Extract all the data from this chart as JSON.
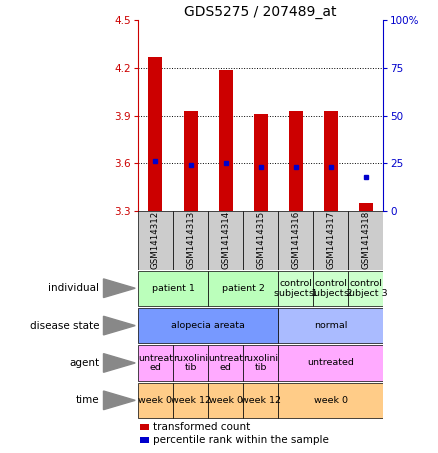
{
  "title": "GDS5275 / 207489_at",
  "samples": [
    "GSM1414312",
    "GSM1414313",
    "GSM1414314",
    "GSM1414315",
    "GSM1414316",
    "GSM1414317",
    "GSM1414318"
  ],
  "red_values": [
    4.27,
    3.93,
    4.19,
    3.91,
    3.93,
    3.93,
    3.35
  ],
  "blue_values": [
    3.61,
    3.585,
    3.6,
    3.575,
    3.575,
    3.575,
    3.51
  ],
  "ylim_left": [
    3.3,
    4.5
  ],
  "ylim_right": [
    0,
    100
  ],
  "yticks_left": [
    3.3,
    3.6,
    3.9,
    4.2,
    4.5
  ],
  "ytick_labels_left": [
    "3.3",
    "3.6",
    "3.9",
    "4.2",
    "4.5"
  ],
  "yticks_right": [
    0,
    25,
    50,
    75,
    100
  ],
  "ytick_labels_right": [
    "0",
    "25",
    "50",
    "75",
    "100%"
  ],
  "hline_values": [
    4.2,
    3.9,
    3.6
  ],
  "rows": {
    "individual": {
      "groups": [
        {
          "text": "patient 1",
          "cols": [
            0,
            1
          ],
          "color": "#bbffbb"
        },
        {
          "text": "patient 2",
          "cols": [
            2,
            3
          ],
          "color": "#bbffbb"
        },
        {
          "text": "control\nsubject 1",
          "cols": [
            4
          ],
          "color": "#ccffcc"
        },
        {
          "text": "control\nsubject 2",
          "cols": [
            5
          ],
          "color": "#ccffcc"
        },
        {
          "text": "control\nsubject 3",
          "cols": [
            6
          ],
          "color": "#ccffcc"
        }
      ]
    },
    "disease_state": {
      "groups": [
        {
          "text": "alopecia areata",
          "cols": [
            0,
            1,
            2,
            3
          ],
          "color": "#7799ff"
        },
        {
          "text": "normal",
          "cols": [
            4,
            5,
            6
          ],
          "color": "#aabbff"
        }
      ]
    },
    "agent": {
      "groups": [
        {
          "text": "untreat\ned",
          "cols": [
            0
          ],
          "color": "#ffaaff"
        },
        {
          "text": "ruxolini\ntib",
          "cols": [
            1
          ],
          "color": "#ffaaff"
        },
        {
          "text": "untreat\ned",
          "cols": [
            2
          ],
          "color": "#ffaaff"
        },
        {
          "text": "ruxolini\ntib",
          "cols": [
            3
          ],
          "color": "#ffaaff"
        },
        {
          "text": "untreated",
          "cols": [
            4,
            5,
            6
          ],
          "color": "#ffaaff"
        }
      ]
    },
    "time": {
      "groups": [
        {
          "text": "week 0",
          "cols": [
            0
          ],
          "color": "#ffcc88"
        },
        {
          "text": "week 12",
          "cols": [
            1
          ],
          "color": "#ffcc88"
        },
        {
          "text": "week 0",
          "cols": [
            2
          ],
          "color": "#ffcc88"
        },
        {
          "text": "week 12",
          "cols": [
            3
          ],
          "color": "#ffcc88"
        },
        {
          "text": "week 0",
          "cols": [
            4,
            5,
            6
          ],
          "color": "#ffcc88"
        }
      ]
    }
  },
  "row_order": [
    "individual",
    "disease_state",
    "agent",
    "time"
  ],
  "row_labels": [
    "individual",
    "disease state",
    "agent",
    "time"
  ],
  "legend_items": [
    {
      "color": "#cc0000",
      "label": "transformed count"
    },
    {
      "color": "#0000cc",
      "label": "percentile rank within the sample"
    }
  ],
  "left_color": "#cc0000",
  "right_color": "#0000cc",
  "bar_color": "#cc0000",
  "dot_color": "#0000cc"
}
